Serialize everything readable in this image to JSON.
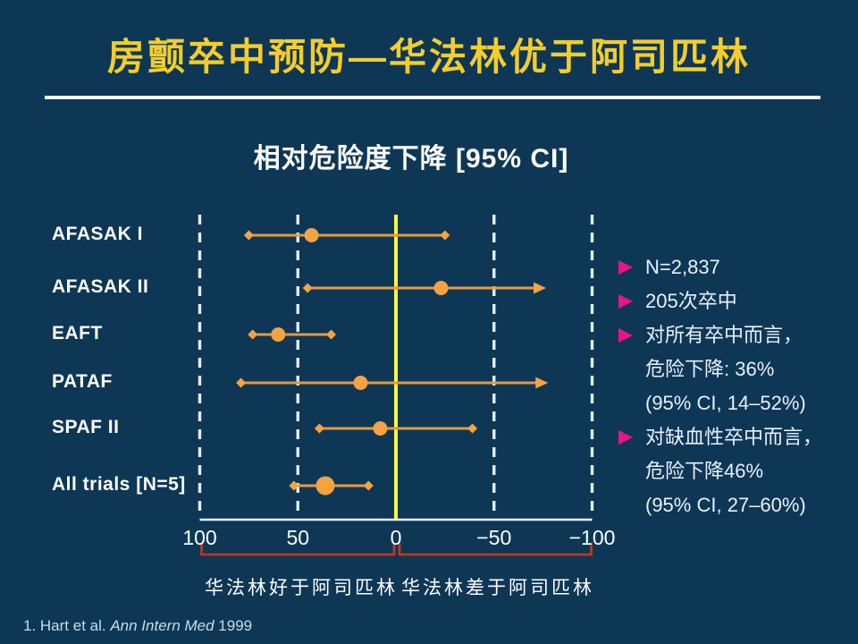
{
  "slide": {
    "title": "房颤卒中预防—华法林优于阿司匹林",
    "subtitle": "相对危险度下降 [95% CI]"
  },
  "chart_data": {
    "type": "scatter",
    "subtype": "forest-plot",
    "title": "相对危险度下降 [95% CI]",
    "xlabel": "",
    "xlim": [
      100,
      -100
    ],
    "x_ticks": [
      {
        "label": "100",
        "value": 100
      },
      {
        "label": "50",
        "value": 50
      },
      {
        "label": "0",
        "value": 0
      },
      {
        "label": "−50",
        "value": -50
      },
      {
        "label": "−100",
        "value": -100
      }
    ],
    "zero_reference_line": 0,
    "trials": [
      {
        "label": "AFASAK I",
        "point": 43,
        "ci_upper": 75,
        "ci_lower": -25,
        "lower_arrow": false,
        "emphasis": false
      },
      {
        "label": "AFASAK II",
        "point": -23,
        "ci_upper": 45,
        "ci_lower": -72,
        "lower_arrow": true,
        "emphasis": false
      },
      {
        "label": "EAFT",
        "point": 60,
        "ci_upper": 73,
        "ci_lower": 33,
        "lower_arrow": false,
        "emphasis": false
      },
      {
        "label": "PATAF",
        "point": 18,
        "ci_upper": 79,
        "ci_lower": -73,
        "lower_arrow": true,
        "emphasis": false
      },
      {
        "label": "SPAF II",
        "point": 8,
        "ci_upper": 39,
        "ci_lower": -39,
        "lower_arrow": false,
        "emphasis": false
      },
      {
        "label": "All trials [N=5]",
        "point": 36,
        "ci_upper": 52,
        "ci_lower": 14,
        "lower_arrow": false,
        "emphasis": true
      }
    ],
    "benefit_region": {
      "label": "华法林好于阿司匹林",
      "range": [
        100,
        0
      ]
    },
    "harm_region": {
      "label": "华法林差于阿司匹林",
      "range": [
        0,
        -100
      ]
    }
  },
  "bullets": [
    {
      "lines": [
        "N=2,837"
      ]
    },
    {
      "lines": [
        "205次卒中"
      ]
    },
    {
      "lines": [
        "对所有卒中而言，",
        "危险下降: 36%",
        "(95% CI, 14–52%)"
      ]
    },
    {
      "lines": [
        "对缺血性卒中而言，",
        "危险下降46%",
        "(95% CI, 27–60%)"
      ]
    }
  ],
  "footer": {
    "prefix": "1. Hart et al. ",
    "journal": "Ann Intern Med",
    "suffix": " 1999"
  },
  "colors": {
    "background": "#0e3756",
    "title_yellow": "#f3cd2b",
    "marker_orange": "#f7a240",
    "line_orange": "#e49a3f",
    "zero_yellow": "#fbf73e",
    "grid_white": "#e4edf4",
    "bullet_pink": "#ed1380",
    "bracket_red": "#c8381b"
  }
}
